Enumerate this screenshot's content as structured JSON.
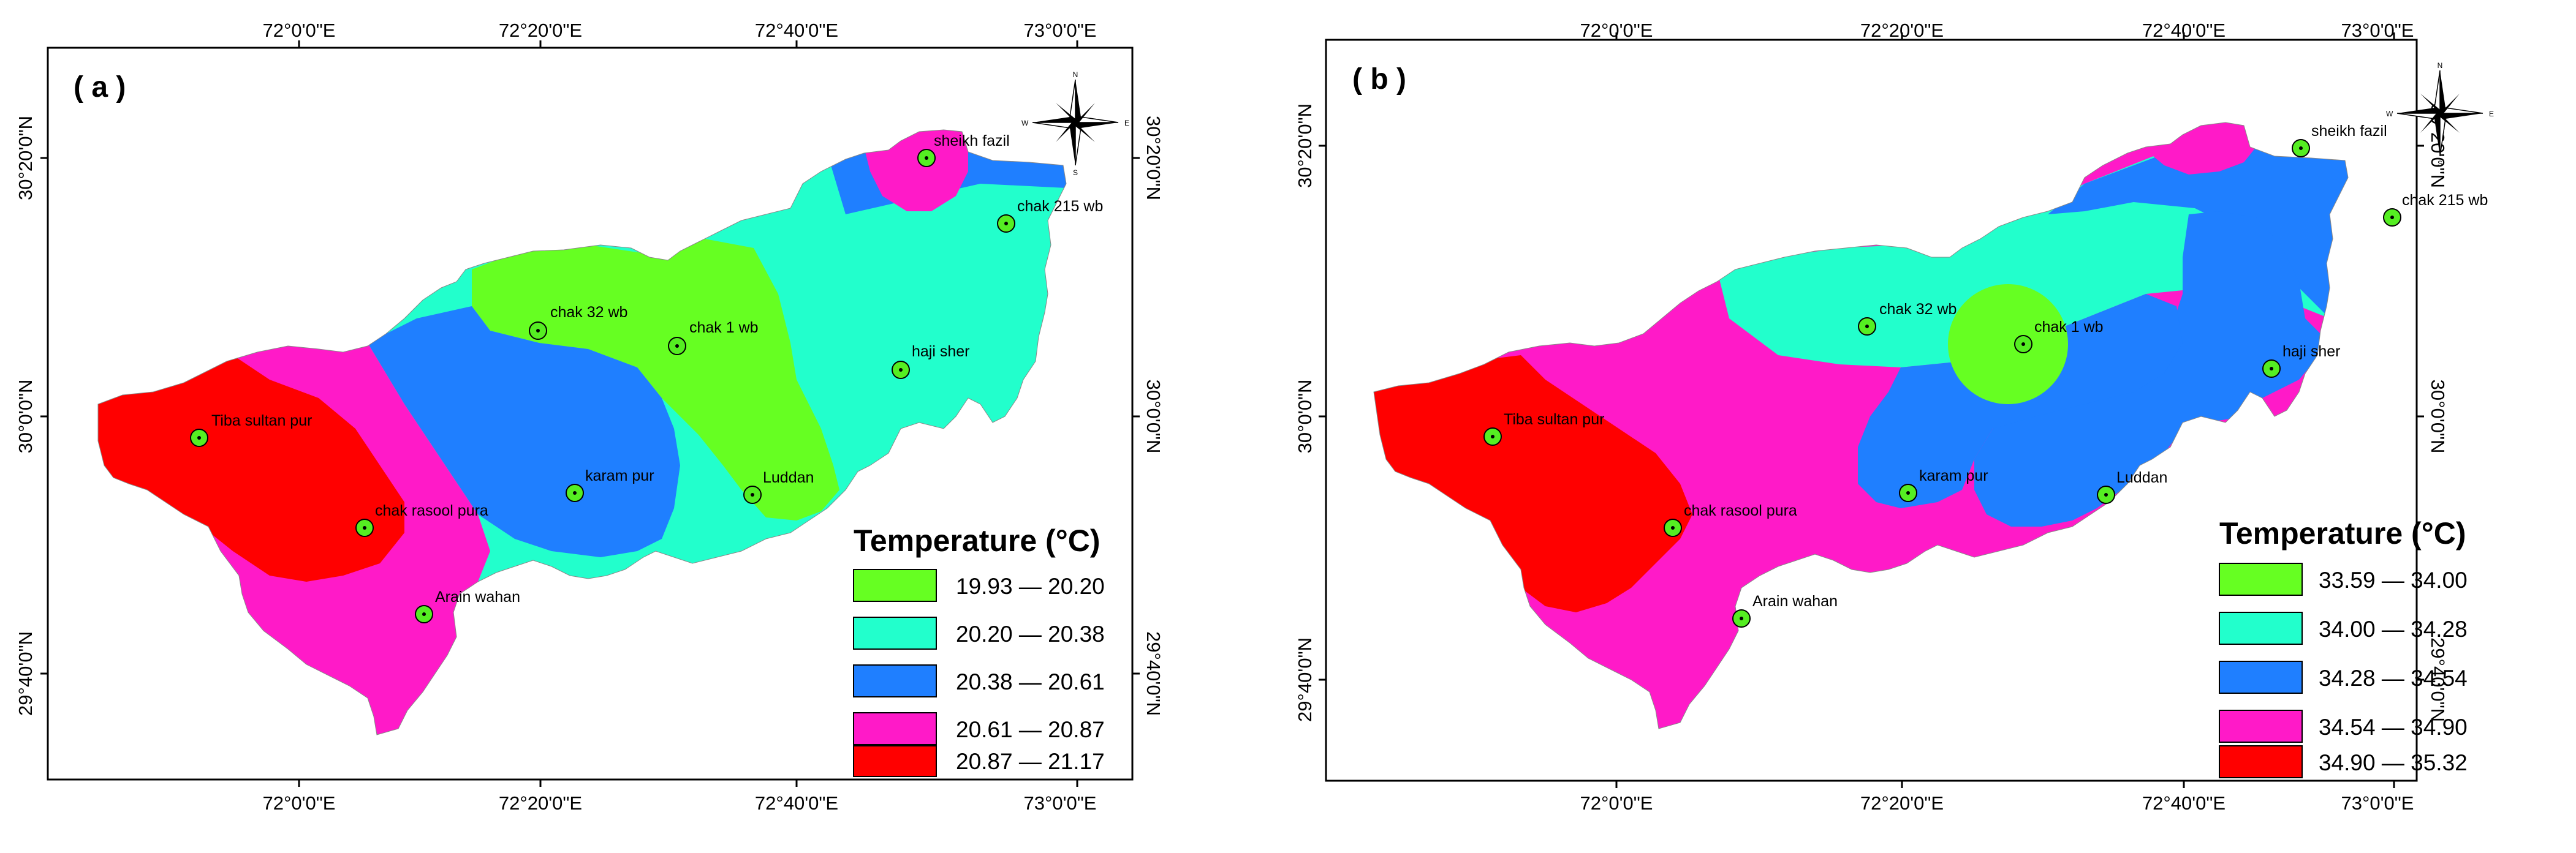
{
  "colors": {
    "green": "#66ff22",
    "teal": "#22ffcc",
    "blue": "#1f7fff",
    "magenta": "#ff1ac8",
    "red": "#ff0000",
    "frame": "#000000",
    "station_fill": "#55ee22"
  },
  "panels": [
    {
      "label": "( a )",
      "legend": {
        "title": "Temperature (°C)",
        "classes": [
          {
            "range": "19.93 — 20.20",
            "color": "#66ff22"
          },
          {
            "range": "20.20 — 20.38",
            "color": "#22ffcc"
          },
          {
            "range": "20.38 — 20.61",
            "color": "#1f7fff"
          },
          {
            "range": "20.61 — 20.87",
            "color": "#ff1ac8"
          },
          {
            "range": "20.87 — 21.17",
            "color": "#ff0000"
          }
        ]
      },
      "x_ticks": [
        "72°0'0\"E",
        "72°20'0\"E",
        "72°40'0\"E",
        "73°0'0\"E"
      ],
      "y_ticks": [
        "30°20'0\"N",
        "30°0'0\"N",
        "29°40'0\"N"
      ]
    },
    {
      "label": "( b )",
      "legend": {
        "title": "Temperature (°C)",
        "classes": [
          {
            "range": "33.59 — 34.00",
            "color": "#66ff22"
          },
          {
            "range": "34.00 — 34.28",
            "color": "#22ffcc"
          },
          {
            "range": "34.28 — 34.54",
            "color": "#1f7fff"
          },
          {
            "range": "34.54 — 34.90",
            "color": "#ff1ac8"
          },
          {
            "range": "34.90 — 35.32",
            "color": "#ff0000"
          }
        ]
      },
      "x_ticks": [
        "72°0'0\"E",
        "72°20'0\"E",
        "72°40'0\"E",
        "73°0'0\"E"
      ],
      "y_ticks": [
        "30°20'0\"N",
        "30°0'0\"N",
        "29°40'0\"N"
      ]
    }
  ],
  "stations": [
    {
      "name": "sheikh fazil"
    },
    {
      "name": "chak 215 wb"
    },
    {
      "name": "chak 32 wb"
    },
    {
      "name": "chak 1 wb"
    },
    {
      "name": "haji sher"
    },
    {
      "name": "Tiba sultan pur"
    },
    {
      "name": "karam pur"
    },
    {
      "name": "Luddan"
    },
    {
      "name": "chak rasool pura"
    },
    {
      "name": "Arain wahan"
    }
  ],
  "compass": {
    "n": "N",
    "s": "S",
    "e": "E",
    "w": "W"
  }
}
